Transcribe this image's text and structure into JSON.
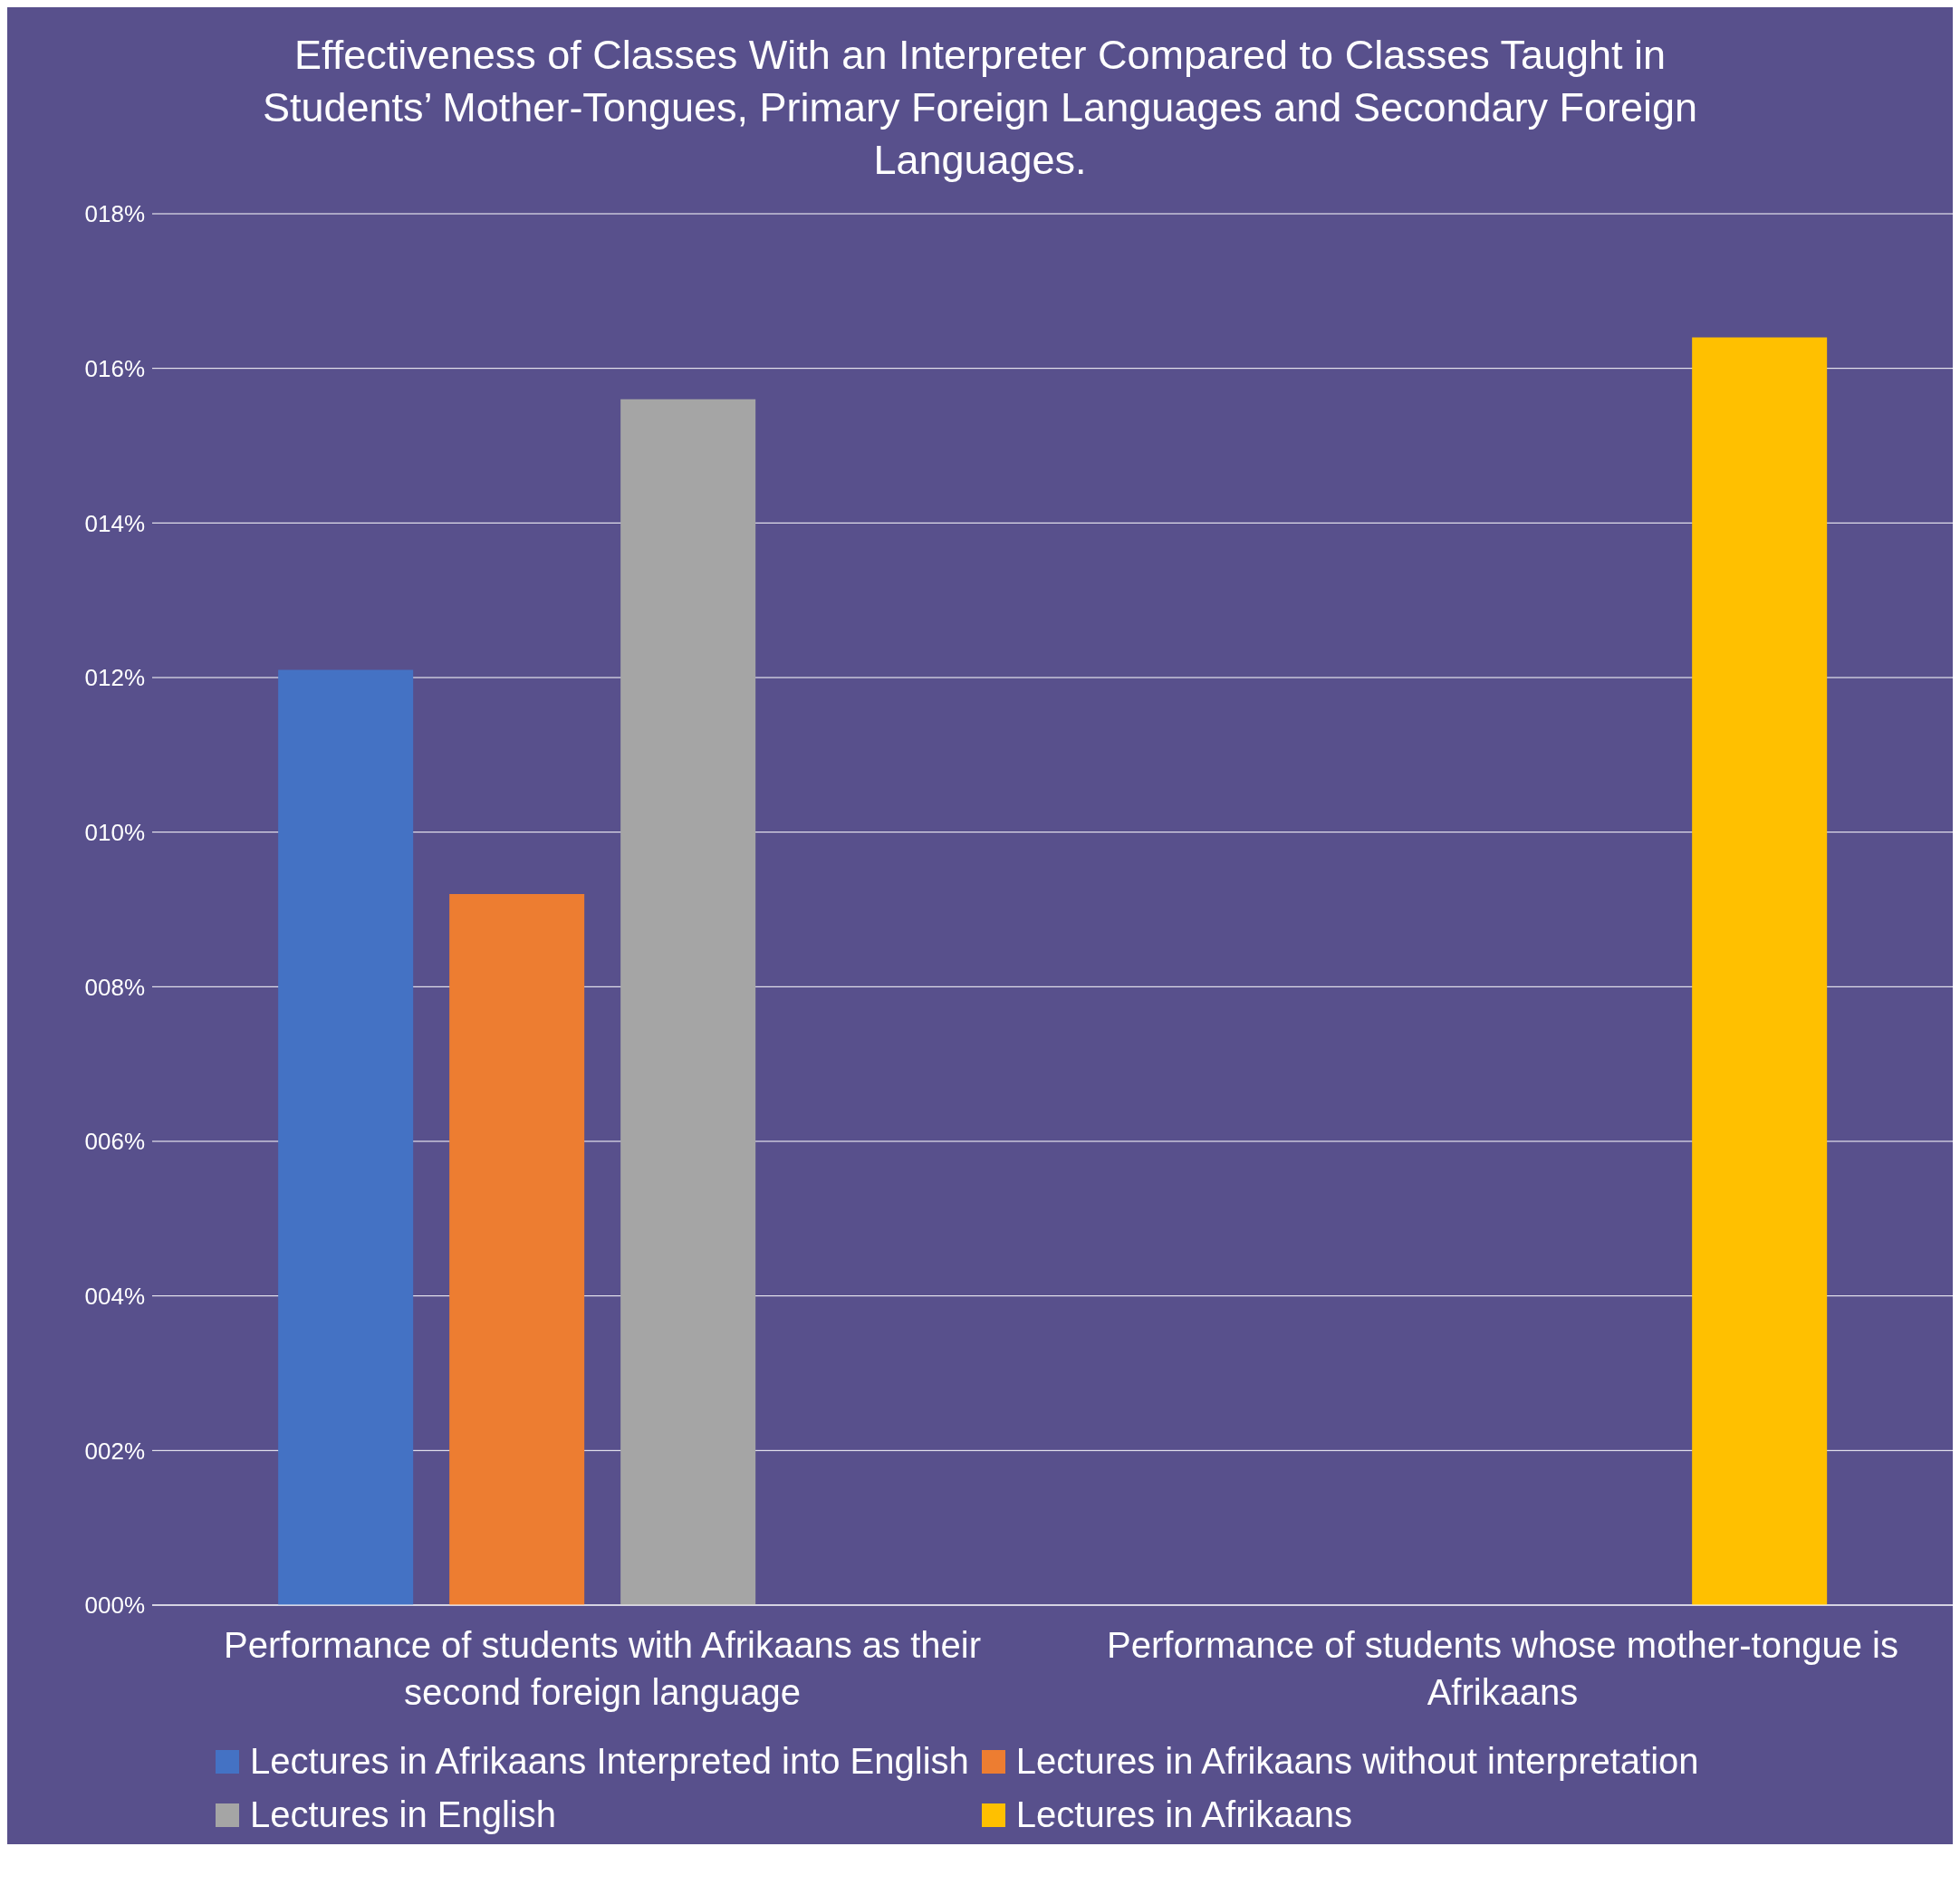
{
  "chart_data": {
    "type": "bar",
    "title": "Effectiveness of Classes With an Interpreter Compared to Classes Taught in Students’ Mother-Tongues, Primary Foreign Languages and Secondary Foreign Languages.",
    "categories": [
      "Performance of students with Afrikaans as their second foreign language",
      "Performance of students whose mother-tongue is Afrikaans"
    ],
    "series": [
      {
        "name": "Lectures in Afrikaans Interpreted into English",
        "color": "#4472c4",
        "values": [
          12.1,
          null
        ]
      },
      {
        "name": "Lectures in Afrikaans without interpretation",
        "color": "#ed7d31",
        "values": [
          9.2,
          null
        ]
      },
      {
        "name": "Lectures in English",
        "color": "#a5a5a5",
        "values": [
          15.6,
          null
        ]
      },
      {
        "name": "Lectures in Afrikaans",
        "color": "#ffc000",
        "values": [
          null,
          16.4
        ]
      }
    ],
    "ylim": [
      0,
      18
    ],
    "yticks": [
      {
        "value": 0,
        "label": "000%"
      },
      {
        "value": 2,
        "label": "002%"
      },
      {
        "value": 4,
        "label": "004%"
      },
      {
        "value": 6,
        "label": "006%"
      },
      {
        "value": 8,
        "label": "008%"
      },
      {
        "value": 10,
        "label": "010%"
      },
      {
        "value": 12,
        "label": "012%"
      },
      {
        "value": 14,
        "label": "014%"
      },
      {
        "value": 16,
        "label": "016%"
      },
      {
        "value": 18,
        "label": "018%"
      }
    ],
    "grid": "y",
    "legend": "bottom"
  }
}
